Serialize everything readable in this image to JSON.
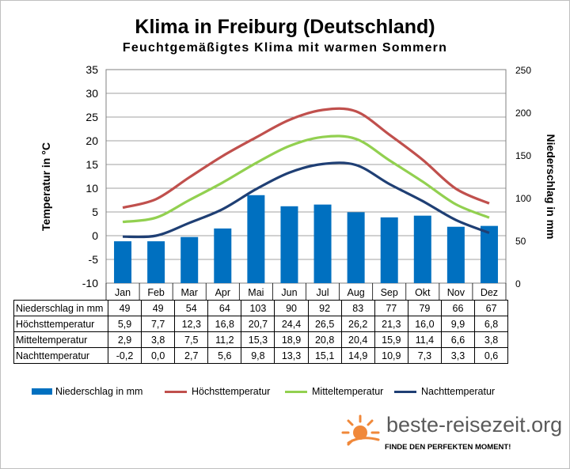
{
  "title": "Klima in Freiburg (Deutschland)",
  "subtitle": "Feuchtgemäßigtes Klima mit warmen Sommern",
  "colors": {
    "bars": "#0070c0",
    "hoechst": "#c0504d",
    "mittel": "#92d050",
    "nacht": "#1f3f74"
  },
  "chart_data": {
    "type": "bar",
    "title": "Klima in Freiburg (Deutschland)",
    "categories": [
      "Jan",
      "Feb",
      "Mar",
      "Apr",
      "Mai",
      "Jun",
      "Jul",
      "Aug",
      "Sep",
      "Okt",
      "Nov",
      "Dez"
    ],
    "ylabel": "Temperatur in °C",
    "y2label": "Niederschlag in mm",
    "ylim": [
      -10,
      35
    ],
    "y2lim": [
      0,
      250
    ],
    "yticks": [
      "35",
      "30",
      "25",
      "20",
      "15",
      "10",
      "5",
      "0",
      "-5",
      "-10"
    ],
    "y2ticks": [
      "250",
      "200",
      "150",
      "100",
      "50",
      "0"
    ],
    "grid": true,
    "legend_position": "bottom",
    "series": [
      {
        "name": "Niederschlag in mm",
        "kind": "bar",
        "axis": "right",
        "values": [
          49,
          49,
          54,
          64,
          103,
          90,
          92,
          83,
          77,
          79,
          66,
          67
        ],
        "labels": [
          "49",
          "49",
          "54",
          "64",
          "103",
          "90",
          "92",
          "83",
          "77",
          "79",
          "66",
          "67"
        ]
      },
      {
        "name": "Höchsttemperatur",
        "kind": "line",
        "axis": "left",
        "values": [
          5.9,
          7.7,
          12.3,
          16.8,
          20.7,
          24.4,
          26.5,
          26.2,
          21.3,
          16.0,
          9.9,
          6.8
        ],
        "labels": [
          "5,9",
          "7,7",
          "12,3",
          "16,8",
          "20,7",
          "24,4",
          "26,5",
          "26,2",
          "21,3",
          "16,0",
          "9,9",
          "6,8"
        ]
      },
      {
        "name": "Mitteltemperatur",
        "kind": "line",
        "axis": "left",
        "values": [
          2.9,
          3.8,
          7.5,
          11.2,
          15.3,
          18.9,
          20.8,
          20.4,
          15.9,
          11.4,
          6.6,
          3.8
        ],
        "labels": [
          "2,9",
          "3,8",
          "7,5",
          "11,2",
          "15,3",
          "18,9",
          "20,8",
          "20,4",
          "15,9",
          "11,4",
          "6,6",
          "3,8"
        ]
      },
      {
        "name": "Nachttemperatur",
        "kind": "line",
        "axis": "left",
        "values": [
          -0.2,
          0.0,
          2.7,
          5.6,
          9.8,
          13.3,
          15.1,
          14.9,
          10.9,
          7.3,
          3.3,
          0.6
        ],
        "labels": [
          "-0,2",
          "0,0",
          "2,7",
          "5,6",
          "9,8",
          "13,3",
          "15,1",
          "14,9",
          "10,9",
          "7,3",
          "3,3",
          "0,6"
        ]
      }
    ]
  },
  "logo": {
    "text": "beste-reisezeit.org",
    "slogan": "FINDE DEN PERFEKTEN MOMENT!"
  }
}
